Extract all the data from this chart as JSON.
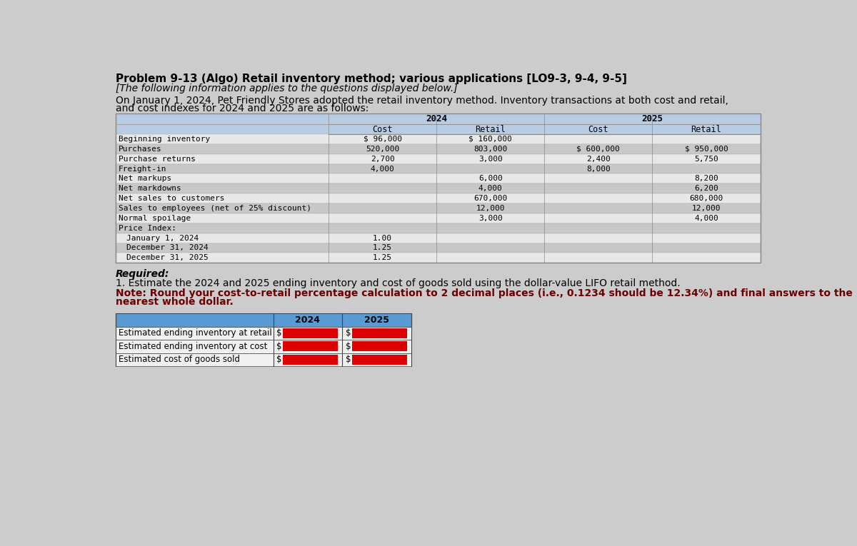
{
  "title": "Problem 9-13 (Algo) Retail inventory method; various applications [LO9-3, 9-4, 9-5]",
  "subtitle": "[The following information applies to the questions displayed below.]",
  "intro_line1": "On January 1, 2024, Pet Friendly Stores adopted the retail inventory method. Inventory transactions at both cost and retail,",
  "intro_line2": "and cost indexes for 2024 and 2025 are as follows:",
  "table_header_bg": "#b8cce4",
  "table_row_bg_dark": "#c8c8c8",
  "table_row_bg_light": "#e8e8e8",
  "row_labels": [
    "Beginning inventory",
    "Purchases",
    "Purchase returns",
    "Freight-in",
    "Net markups",
    "Net markdowns",
    "Net sales to customers",
    "Sales to employees (net of 25% discount)",
    "Normal spoilage",
    "Price Index:",
    "   January 1, 2024",
    "   December 31, 2024",
    "   December 31, 2025"
  ],
  "col_2024_cost": [
    "$ 96,000",
    "520,000",
    "2,700",
    "4,000",
    "",
    "",
    "",
    "",
    "",
    "",
    "1.00",
    "1.25",
    "1.25"
  ],
  "col_2024_retail": [
    "$ 160,000",
    "803,000",
    "3,000",
    "",
    "6,000",
    "4,000",
    "670,000",
    "12,000",
    "3,000",
    "",
    "",
    "",
    ""
  ],
  "col_2025_cost": [
    "",
    "$ 600,000",
    "2,400",
    "8,000",
    "",
    "",
    "",
    "",
    "",
    "",
    "",
    "",
    ""
  ],
  "col_2025_retail": [
    "",
    "$ 950,000",
    "5,750",
    "",
    "8,200",
    "6,200",
    "680,000",
    "12,000",
    "4,000",
    "",
    "",
    "",
    ""
  ],
  "required_label": "Required:",
  "required_line1": "1. Estimate the 2024 and 2025 ending inventory and cost of goods sold using the dollar-value LIFO retail method.",
  "required_line2a": "Note: Round your cost-to-retail percentage calculation to 2 decimal places (i.e., 0.1234 should be 12.34%) and final answers to the",
  "required_line2b": "nearest whole dollar.",
  "bottom_table_rows": [
    "Estimated ending inventory at retail",
    "Estimated ending inventory at cost",
    "Estimated cost of goods sold"
  ],
  "bottom_header_bg": "#5b9bd5",
  "bottom_row_bg": "#f0f0f0",
  "red_fill": "#dd0000",
  "bg_color": "#cccccc"
}
